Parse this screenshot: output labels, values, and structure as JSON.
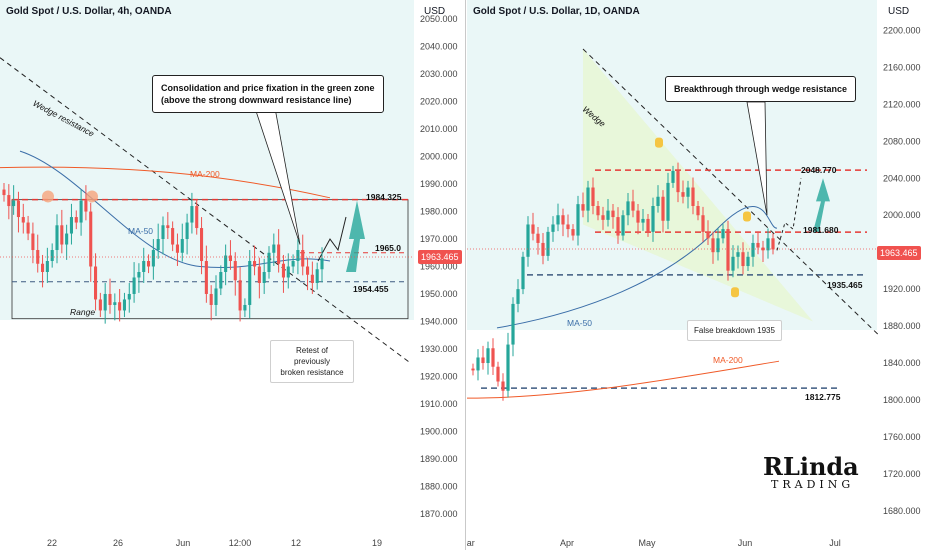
{
  "left": {
    "title": "Gold Spot / U.S. Dollar, 4h, OANDA",
    "currency": "USD",
    "price_tag": "1963.465",
    "note": "Consolidation and price fixation in the green zone\n(above the strong downward resistance line)",
    "retest_note": "Retest of previously\nbroken resistance",
    "wedge_label": "Wedge resistance",
    "ma200_label": "MA-200",
    "ma50_label": "MA-50",
    "range_label": "Range",
    "levels": [
      "1984.325",
      "1965.0",
      "1954.455"
    ]
  },
  "right": {
    "title": "Gold Spot / U.S. Dollar, 1D, OANDA",
    "currency": "USD",
    "price_tag": "1963.465",
    "note": "Breakthrough through wedge resistance",
    "false_breakdown": "False breakdown 1935",
    "wedge_label": "Wedge",
    "ma50_label": "MA-50",
    "ma200_label": "MA-200",
    "levels": [
      "2048.770",
      "1981.680",
      "1935.465",
      "1812.775"
    ]
  },
  "logo": {
    "line1": "RLinda",
    "line2": "TRADING"
  },
  "colors": {
    "up": "#26a69a",
    "down": "#ef5350",
    "ma50": "#3b6ea8",
    "ma200": "#f05a28",
    "green_zone": "#e8f6d6"
  },
  "chart_data": [
    {
      "type": "candlestick",
      "title": "Gold Spot / U.S. Dollar, 4h, OANDA",
      "ylabel": "USD",
      "ylim": [
        1863,
        2057
      ],
      "y_ticks": [
        2050,
        2040,
        2030,
        2020,
        2010,
        2000,
        1990,
        1980,
        1970,
        1960,
        1950,
        1940,
        1930,
        1920,
        1910,
        1900,
        1890,
        1880,
        1870
      ],
      "x_ticks": [
        "22",
        "26",
        "Jun",
        "12:00",
        "12",
        "19"
      ],
      "levels": [
        1984.325,
        1965.0,
        1954.455
      ],
      "range": [
        1941,
        1984.325
      ],
      "last_price": 1963.465,
      "closes": [
        1986,
        1982,
        1984,
        1978,
        1976,
        1972,
        1966,
        1961,
        1958,
        1962,
        1966,
        1975,
        1968,
        1972,
        1978,
        1976,
        1984,
        1980,
        1960,
        1948,
        1944,
        1950,
        1946,
        1947,
        1944,
        1948,
        1950,
        1956,
        1958,
        1962,
        1960,
        1966,
        1970,
        1975,
        1974,
        1968,
        1965,
        1970,
        1976,
        1982,
        1974,
        1962,
        1950,
        1946,
        1952,
        1958,
        1964,
        1962,
        1955,
        1944,
        1946,
        1962,
        1960,
        1954,
        1958,
        1965,
        1968,
        1961,
        1956,
        1960,
        1962,
        1966,
        1960,
        1957,
        1954,
        1959,
        1963
      ]
    },
    {
      "type": "candlestick",
      "title": "Gold Spot / U.S. Dollar, 1D, OANDA",
      "ylabel": "USD",
      "ylim": [
        1656,
        2233
      ],
      "y_ticks": [
        2200,
        2160,
        2120,
        2080,
        2040,
        2000,
        1960,
        1920,
        1880,
        1840,
        1800,
        1760,
        1720,
        1680
      ],
      "x_ticks": [
        "Mar",
        "Apr",
        "May",
        "Jun",
        "Jul"
      ],
      "levels": [
        2048.77,
        1981.68,
        1935.465,
        1812.775
      ],
      "last_price": 1963.465,
      "closes": [
        1832,
        1846,
        1840,
        1856,
        1836,
        1820,
        1810,
        1860,
        1904,
        1920,
        1955,
        1990,
        1980,
        1970,
        1956,
        1982,
        1990,
        2000,
        1990,
        1985,
        1978,
        2012,
        2005,
        2030,
        2010,
        2000,
        1995,
        2005,
        1998,
        1978,
        2000,
        2015,
        2005,
        1992,
        1996,
        1982,
        2010,
        2020,
        1994,
        2035,
        2048,
        2025,
        2020,
        2030,
        2010,
        2000,
        1982,
        1975,
        1960,
        1975,
        1985,
        1940,
        1955,
        1960,
        1945,
        1955,
        1970,
        1965,
        1962,
        1975,
        1963
      ]
    }
  ]
}
